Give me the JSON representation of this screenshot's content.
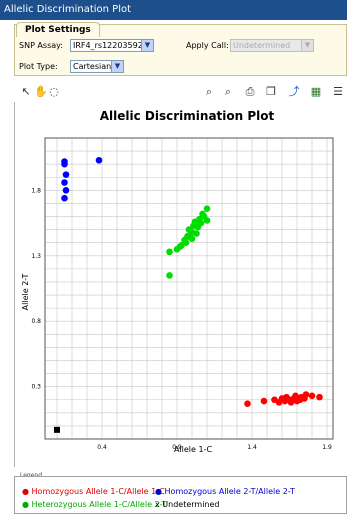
{
  "window": {
    "title": "Allelic Discrimination Plot"
  },
  "settings": {
    "tab_label": "Plot Settings",
    "snp_assay_label": "SNP Assay:",
    "snp_assay_value": "IRF4_rs12203592",
    "apply_call_label": "Apply Call:",
    "apply_call_value": "Undetermined",
    "plot_type_label": "Plot Type:",
    "plot_type_value": "Cartesian"
  },
  "toolbar": {
    "icons": [
      "select-arrow-icon",
      "pan-hand-icon",
      "lasso-icon",
      "zoom-in-icon",
      "zoom-out-icon",
      "print-icon",
      "copy-icon",
      "chart-icon",
      "export-icon",
      "list-icon"
    ]
  },
  "chart_data": {
    "type": "scatter",
    "title": "Allelic Discrimination Plot",
    "xlabel": "Allele 1-C",
    "ylabel": "Allele 2-T",
    "xlim": [
      0.02,
      1.94
    ],
    "ylim": [
      -0.1,
      2.2
    ],
    "xticks": [
      "0.4",
      "0.9",
      "1.4",
      "1.9"
    ],
    "yticks": [
      "0.3",
      "0.8",
      "1.3",
      "1.8"
    ],
    "grid": true,
    "series": [
      {
        "name": "Homozygous Allele 1-C/Allele 1-C",
        "color": "#ff0000",
        "marker": "circle",
        "points": [
          [
            1.37,
            0.17
          ],
          [
            1.48,
            0.19
          ],
          [
            1.55,
            0.2
          ],
          [
            1.58,
            0.18
          ],
          [
            1.6,
            0.21
          ],
          [
            1.62,
            0.19
          ],
          [
            1.63,
            0.22
          ],
          [
            1.65,
            0.2
          ],
          [
            1.66,
            0.18
          ],
          [
            1.68,
            0.21
          ],
          [
            1.69,
            0.23
          ],
          [
            1.7,
            0.19
          ],
          [
            1.72,
            0.2
          ],
          [
            1.73,
            0.22
          ],
          [
            1.75,
            0.21
          ],
          [
            1.76,
            0.24
          ],
          [
            1.8,
            0.23
          ],
          [
            1.85,
            0.22
          ],
          [
            1.67,
            0.2
          ],
          [
            1.71,
            0.21
          ]
        ]
      },
      {
        "name": "Homozygous Allele 2-T/Allele 2-T",
        "color": "#0000ff",
        "marker": "circle",
        "points": [
          [
            0.15,
            2.02
          ],
          [
            0.16,
            1.92
          ],
          [
            0.15,
            1.86
          ],
          [
            0.16,
            1.8
          ],
          [
            0.15,
            1.74
          ],
          [
            0.38,
            2.03
          ],
          [
            0.15,
            2.0
          ]
        ]
      },
      {
        "name": "Heterozygous Allele 1-C/Allele 2-T",
        "color": "#00dd00",
        "marker": "circle",
        "points": [
          [
            0.85,
            1.15
          ],
          [
            0.85,
            1.33
          ],
          [
            0.9,
            1.35
          ],
          [
            0.93,
            1.38
          ],
          [
            0.95,
            1.42
          ],
          [
            0.97,
            1.45
          ],
          [
            0.98,
            1.5
          ],
          [
            1.0,
            1.48
          ],
          [
            1.01,
            1.53
          ],
          [
            1.02,
            1.56
          ],
          [
            1.04,
            1.52
          ],
          [
            1.05,
            1.58
          ],
          [
            1.06,
            1.55
          ],
          [
            1.07,
            1.62
          ],
          [
            1.08,
            1.6
          ],
          [
            1.1,
            1.57
          ],
          [
            1.1,
            1.66
          ],
          [
            0.96,
            1.4
          ],
          [
            0.99,
            1.44
          ],
          [
            1.03,
            1.47
          ],
          [
            0.92,
            1.37
          ],
          [
            1.0,
            1.43
          ]
        ]
      },
      {
        "name": "Undetermined",
        "color": "#000000",
        "marker": "square",
        "points": [
          [
            0.1,
            -0.03
          ]
        ]
      }
    ]
  },
  "legend": {
    "title": "Legend",
    "items": [
      {
        "label": "Homozygous Allele 1-C/Allele 1-C",
        "color": "#ff0000",
        "glyph": "●"
      },
      {
        "label": "Homozygous Allele 2-T/Allele 2-T",
        "color": "#0000ff",
        "glyph": "●"
      },
      {
        "label": "Heterozygous Allele 1-C/Allele 2-T",
        "color": "#00bb00",
        "glyph": "●"
      },
      {
        "label": "Undetermined",
        "color": "#000000",
        "glyph": "x"
      }
    ]
  }
}
